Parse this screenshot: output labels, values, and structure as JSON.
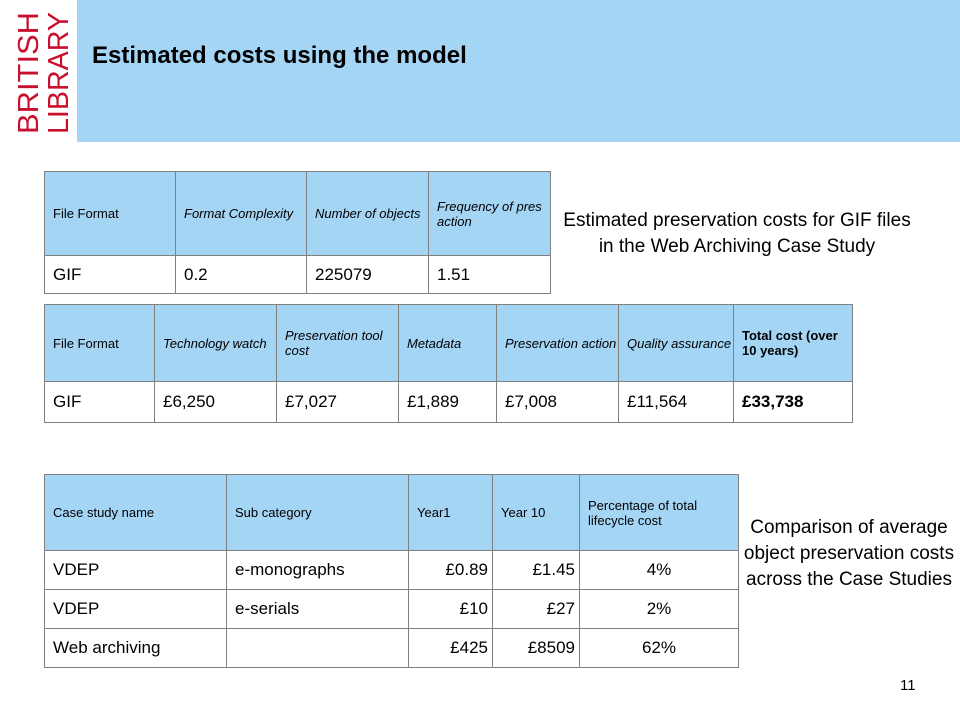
{
  "logo": {
    "line1": "BRITISH",
    "line2": "LIBRARY"
  },
  "title": "Estimated costs using the model",
  "table1": {
    "headers": [
      "File Format",
      "Format Complexity",
      "Number of objects",
      "Frequency of pres action"
    ],
    "row": [
      "GIF",
      "0.2",
      "225079",
      "1.51"
    ]
  },
  "table2": {
    "headers": [
      "File Format",
      "Technology watch",
      "Preservation tool cost",
      "Metadata",
      "Preservation action",
      "Quality assurance",
      "Total cost (over 10 years)"
    ],
    "row": [
      "GIF",
      "£6,250",
      "£7,027",
      "£1,889",
      "£7,008",
      "£11,564",
      "£33,738"
    ]
  },
  "table3": {
    "headers": [
      "Case study name",
      "Sub category",
      "Year1",
      "Year 10",
      "Percentage of total lifecycle cost"
    ],
    "rows": [
      [
        "VDEP",
        "e-monographs",
        "£0.89",
        "£1.45",
        "4%"
      ],
      [
        "VDEP",
        "e-serials",
        "£10",
        "£27",
        "2%"
      ],
      [
        "Web archiving",
        "",
        "£425",
        "£8509",
        "62%"
      ]
    ]
  },
  "side1": "Estimated preservation costs for GIF files in the Web Archiving Case Study",
  "side2": "Comparison of average object preservation costs across the Case Studies",
  "page_number": "11",
  "colors": {
    "header_band": "#a5d5f5",
    "logo_red": "#c8102e",
    "table_header": "#a5d5f5"
  }
}
